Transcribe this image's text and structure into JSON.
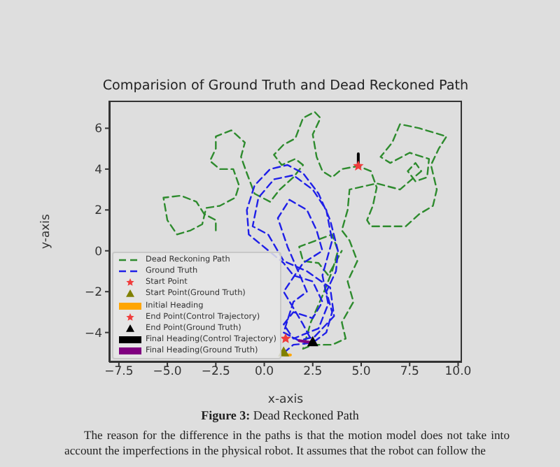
{
  "chart_data": {
    "type": "line",
    "title": "Comparision of Ground Truth and Dead Reckoned Path",
    "xlabel": "x-axis",
    "ylabel": "y-axis",
    "xlim": [
      -8.0,
      10.2
    ],
    "xticks": [
      {
        "value": -7.5,
        "label": "−7.5"
      },
      {
        "value": -5,
        "label": "−5.0"
      },
      {
        "value": -2.5,
        "label": "−2.5"
      },
      {
        "value": 0,
        "label": "0.0"
      },
      {
        "value": 2.5,
        "label": "2.5"
      },
      {
        "value": 5,
        "label": "5.0"
      },
      {
        "value": 7.5,
        "label": "7.5"
      },
      {
        "value": 10,
        "label": "10.0"
      }
    ],
    "ylim": [
      -5.45,
      7.35
    ],
    "yticks": [
      {
        "value": -4,
        "label": "−4"
      },
      {
        "value": -2,
        "label": "−2"
      },
      0,
      2,
      4,
      6
    ],
    "legend": "bottom left",
    "series": [
      {
        "name": "Dead Reckoning Path",
        "line_style": "dashed",
        "marker": "none",
        "color": "#2e8b2e",
        "x": [
          -2.5,
          -2.5,
          -3.1,
          -3.5,
          -4.3,
          -5.2,
          -5.0,
          -4.5,
          -3.8,
          -3.2,
          -3.0,
          -2.3,
          -1.5,
          -1.3,
          -1.6,
          -2.3,
          -2.8,
          -2.5,
          -2.5,
          -1.7,
          -1.0,
          -1.2,
          -0.9,
          -0.5,
          0.3,
          0.8,
          1.5,
          2.0,
          1.6,
          0.9,
          0.5,
          1.0,
          1.6,
          2.0,
          2.6,
          2.9,
          2.5,
          2.7,
          3.0,
          3.5,
          4.0,
          4.85,
          5.5,
          5.8,
          5.6,
          5.3,
          5.5,
          6.3,
          7.3,
          8.0,
          8.7,
          8.9,
          8.6,
          9.0,
          9.4,
          8.0,
          7.0,
          6.6,
          6.0,
          6.5,
          7.5,
          8.5,
          8.4,
          7.8,
          7.4,
          7.8,
          8.1,
          7.0,
          5.8,
          4.4,
          4.3,
          4.0,
          4.4,
          4.8,
          4.3,
          4.6,
          4.0,
          4.2,
          3.5,
          2.5,
          2.0,
          2.4,
          3.0,
          3.5,
          3.8,
          3.5,
          1.8,
          2.0,
          2.8,
          3.3,
          4.0
        ],
        "values": [
          1.0,
          1.5,
          1.8,
          2.4,
          2.7,
          2.6,
          1.5,
          0.8,
          1.0,
          1.3,
          2.1,
          2.2,
          2.6,
          3.2,
          4.0,
          4.0,
          4.4,
          5.0,
          5.6,
          5.9,
          5.3,
          4.6,
          3.8,
          2.8,
          2.4,
          3.0,
          3.6,
          4.2,
          4.5,
          4.2,
          4.7,
          5.2,
          5.5,
          6.5,
          6.8,
          6.5,
          5.7,
          4.6,
          3.9,
          3.6,
          4.0,
          4.15,
          3.9,
          3.1,
          2.2,
          1.5,
          1.2,
          1.2,
          1.2,
          1.8,
          2.2,
          3.0,
          4.2,
          5.0,
          5.6,
          6.0,
          6.2,
          5.3,
          4.6,
          4.3,
          4.8,
          4.5,
          3.6,
          3.4,
          3.9,
          4.3,
          3.9,
          3.0,
          3.3,
          3.0,
          2.0,
          1.0,
          0.5,
          -0.5,
          -1.5,
          -2.5,
          -3.5,
          -4.3,
          -4.6,
          -4.6,
          -4.8,
          -3.5,
          -2.2,
          -1.0,
          0.0,
          0.8,
          0.2,
          -0.5,
          -0.6,
          -1.2,
          0.0
        ]
      },
      {
        "name": "Ground Truth",
        "line_style": "dashed",
        "marker": "none",
        "color": "#1f1fe8",
        "x": [
          1.0,
          1.5,
          2.5,
          3.2,
          3.5,
          3.2,
          3.7,
          3.8,
          3.4,
          2.8,
          2.0,
          1.2,
          0.3,
          -0.5,
          -0.9,
          -0.8,
          1.0,
          1.5,
          2.5,
          3.0,
          2.5,
          1.5,
          1.0,
          1.5,
          2.8,
          3.3,
          3.0,
          3.5,
          3.2,
          2.5,
          1.5,
          0.5,
          -0.3,
          -0.6,
          0.2,
          1.0,
          2.2,
          3.4,
          3.6,
          2.6,
          1.8,
          1.0,
          1.5,
          2.2,
          1.2,
          0.7,
          1.3,
          2.2,
          2.7,
          3.0,
          2.0,
          1.0,
          2.0,
          2.5
        ],
        "values": [
          -5.0,
          -4.6,
          -4.5,
          -4.0,
          -3.0,
          -2.0,
          -1.0,
          0.0,
          1.5,
          2.8,
          3.8,
          4.2,
          4.0,
          3.2,
          2.0,
          0.8,
          -0.6,
          -1.2,
          -1.5,
          -2.5,
          -3.3,
          -3.0,
          -3.6,
          -4.3,
          -3.8,
          -2.6,
          -1.2,
          0.5,
          2.0,
          3.0,
          3.7,
          3.5,
          2.6,
          1.2,
          0.8,
          -0.5,
          -1.0,
          -1.8,
          -3.2,
          -4.2,
          -4.4,
          -4.0,
          -2.5,
          -2.0,
          0.2,
          1.6,
          2.5,
          2.0,
          1.0,
          0.0,
          -0.6,
          -2.0,
          -3.6,
          -4.5
        ]
      },
      {
        "name": "Start Point",
        "type": "scatter",
        "marker": "star",
        "color": "#f03c3c",
        "x": [
          4.85
        ],
        "values": [
          4.15
        ]
      },
      {
        "name": "Start Point(Ground Truth)",
        "type": "scatter",
        "marker": "triangle",
        "color": "#808000",
        "x": [
          1.0
        ],
        "values": [
          -4.95
        ]
      },
      {
        "name": "Initial Heading",
        "type": "line",
        "line_style": "solid",
        "marker": "none",
        "color": "#ffa500",
        "x": [
          1.05,
          1.35
        ],
        "values": [
          -5.1,
          -5.1
        ]
      },
      {
        "name": "End Point(Control Trajectory)",
        "type": "scatter",
        "marker": "star",
        "color": "#f03c3c",
        "x": [
          1.1
        ],
        "values": [
          -4.3
        ]
      },
      {
        "name": "End Point(Ground Truth)",
        "type": "scatter",
        "marker": "triangle",
        "color": "#000000",
        "x": [
          2.5
        ],
        "values": [
          -4.45
        ]
      },
      {
        "name": "Final Heading(Control Trajectory)",
        "type": "line",
        "line_style": "solid",
        "marker": "none",
        "color": "#000000",
        "x": [
          4.85,
          4.85
        ],
        "values": [
          4.2,
          4.75
        ]
      },
      {
        "name": "Final Heading(Ground Truth)",
        "type": "line",
        "line_style": "solid",
        "marker": "none",
        "color": "#800080",
        "x": [
          2.5,
          1.8
        ],
        "values": [
          -4.5,
          -4.4
        ]
      }
    ],
    "annotations": [
      "Figure 3: Dead Reckoned Path",
      "The reason for the difference in the paths is that the motion model does not take into account the imperfections in the physical robot. It assumes that the robot can follow the"
    ]
  }
}
